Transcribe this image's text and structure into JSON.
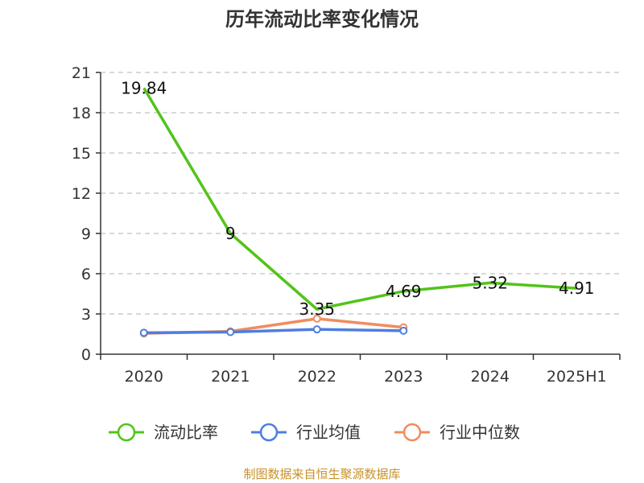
{
  "chart_data": {
    "type": "line",
    "title": "历年流动比率变化情况",
    "categories": [
      "2020",
      "2021",
      "2022",
      "2023",
      "2024",
      "2025H1"
    ],
    "y_ticks": [
      "0",
      "3",
      "6",
      "9",
      "12",
      "15",
      "18",
      "21"
    ],
    "ylim": [
      0,
      21
    ],
    "grid": true,
    "legend_position": "bottom",
    "series": [
      {
        "name": "流动比率",
        "color": "#52c41a",
        "values": [
          19.84,
          9,
          3.35,
          4.69,
          5.32,
          4.91
        ],
        "labels": [
          "19.84",
          "9",
          "3.35",
          "4.69",
          "5.32",
          "4.91"
        ]
      },
      {
        "name": "行业均值",
        "color": "#4e7ee0",
        "values": [
          1.6,
          1.65,
          1.85,
          1.75,
          null,
          null
        ]
      },
      {
        "name": "行业中位数",
        "color": "#f08c60",
        "values": [
          1.55,
          1.7,
          2.65,
          2.0,
          null,
          null
        ]
      }
    ],
    "source": "制图数据来自恒生聚源数据库"
  }
}
